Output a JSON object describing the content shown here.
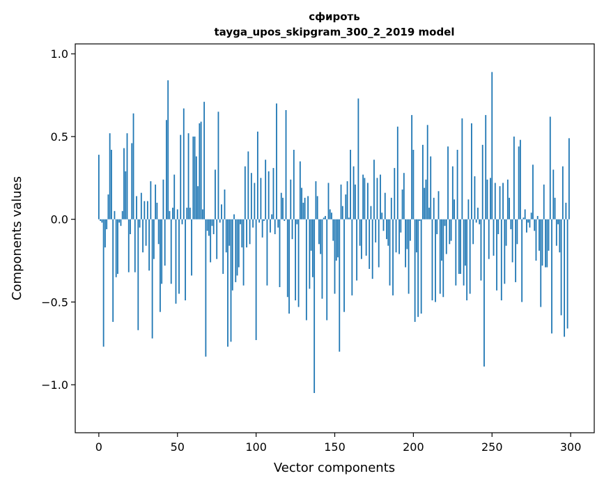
{
  "chart_data": {
    "type": "bar",
    "title_line1": "сфироть",
    "title_line2": "tayga_upos_skipgram_300_2_2019 model",
    "xlabel": "Vector components",
    "ylabel": "Components values",
    "xlim": [
      -15,
      315
    ],
    "ylim": [
      -1.29,
      1.06
    ],
    "x_ticks": [
      0,
      50,
      100,
      150,
      200,
      250,
      300
    ],
    "x_tick_labels": [
      "0",
      "50",
      "100",
      "150",
      "200",
      "250",
      "300"
    ],
    "y_ticks": [
      -1.0,
      -0.5,
      0.0,
      0.5,
      1.0
    ],
    "y_tick_labels": [
      "−1.0",
      "−0.5",
      "0.0",
      "0.5",
      "1.0"
    ],
    "bar_color": "#1f77b4",
    "grid": false,
    "values": [
      0.39,
      -0.01,
      -0.02,
      -0.77,
      -0.17,
      -0.06,
      0.15,
      0.52,
      0.42,
      -0.62,
      0.05,
      -0.35,
      -0.33,
      -0.02,
      -0.04,
      0.05,
      0.43,
      0.29,
      0.52,
      -0.32,
      -0.09,
      0.46,
      0.64,
      -0.32,
      0.14,
      -0.67,
      -0.05,
      0.16,
      -0.2,
      0.11,
      -0.16,
      0.11,
      -0.31,
      0.23,
      -0.72,
      -0.24,
      0.21,
      0.1,
      -0.15,
      -0.56,
      -0.39,
      0.24,
      -0.28,
      0.6,
      0.84,
      0.05,
      -0.39,
      0.07,
      0.27,
      -0.51,
      0.06,
      -0.45,
      0.51,
      -0.03,
      0.67,
      -0.49,
      0.07,
      0.52,
      0.07,
      -0.34,
      0.5,
      0.5,
      0.38,
      0.2,
      0.58,
      0.59,
      0.06,
      0.71,
      -0.83,
      -0.07,
      -0.1,
      -0.26,
      -0.04,
      -0.09,
      0.3,
      -0.24,
      0.65,
      -0.02,
      0.09,
      -0.33,
      0.18,
      -0.2,
      -0.77,
      -0.16,
      -0.74,
      -0.43,
      0.03,
      -0.38,
      -0.34,
      -0.29,
      -0.03,
      -0.17,
      -0.4,
      0.32,
      -0.17,
      0.41,
      -0.15,
      0.28,
      -0.05,
      0.22,
      -0.73,
      0.53,
      -0.02,
      0.25,
      -0.11,
      -0.01,
      0.36,
      -0.4,
      0.29,
      -0.08,
      0.03,
      0.31,
      -0.09,
      0.7,
      -0.05,
      -0.41,
      0.16,
      0.13,
      -0.01,
      0.66,
      -0.47,
      -0.57,
      0.24,
      -0.12,
      0.42,
      -0.49,
      -0.03,
      -0.53,
      0.35,
      0.19,
      0.1,
      0.13,
      -0.61,
      0.14,
      -0.42,
      -0.19,
      -0.35,
      -1.05,
      0.23,
      0.14,
      -0.15,
      -0.21,
      -0.48,
      0.01,
      0.02,
      -0.61,
      0.22,
      0.06,
      0.04,
      -0.13,
      -0.45,
      -0.25,
      -0.23,
      -0.8,
      0.21,
      0.08,
      -0.56,
      0.15,
      0.23,
      0.01,
      0.42,
      -0.46,
      0.32,
      0.21,
      -0.37,
      0.73,
      -0.16,
      -0.24,
      0.27,
      0.25,
      -0.22,
      0.22,
      -0.3,
      0.08,
      -0.36,
      0.36,
      -0.14,
      0.25,
      -0.29,
      0.27,
      0.04,
      -0.07,
      0.16,
      -0.12,
      -0.16,
      -0.4,
      0.13,
      -0.46,
      0.31,
      -0.2,
      0.56,
      -0.21,
      -0.08,
      0.18,
      0.28,
      -0.29,
      -0.18,
      -0.45,
      -0.13,
      0.63,
      0.42,
      -0.62,
      -0.2,
      -0.59,
      -0.01,
      -0.57,
      0.45,
      0.19,
      0.24,
      0.57,
      0.07,
      0.38,
      -0.49,
      0.13,
      -0.5,
      -0.09,
      0.17,
      -0.45,
      -0.25,
      -0.47,
      -0.04,
      -0.21,
      0.44,
      -0.15,
      -0.13,
      0.32,
      0.12,
      -0.4,
      0.42,
      -0.33,
      -0.33,
      0.61,
      -0.4,
      -0.28,
      -0.49,
      0.12,
      -0.45,
      0.58,
      -0.15,
      0.26,
      -0.02,
      0.07,
      -0.03,
      -0.37,
      0.45,
      -0.89,
      0.63,
      0.24,
      -0.24,
      0.25,
      0.89,
      -0.22,
      0.22,
      -0.43,
      -0.09,
      0.2,
      -0.49,
      0.22,
      -0.39,
      -0.16,
      0.24,
      0.13,
      -0.06,
      -0.26,
      0.5,
      -0.38,
      -0.15,
      0.44,
      0.48,
      -0.5,
      0.01,
      0.06,
      -0.08,
      -0.02,
      -0.05,
      0.04,
      0.33,
      -0.07,
      -0.25,
      0.02,
      -0.19,
      -0.53,
      -0.28,
      0.21,
      -0.29,
      -0.29,
      -0.19,
      0.62,
      -0.69,
      0.3,
      0.13,
      -0.16,
      -0.03,
      -0.2,
      -0.58,
      0.32,
      -0.71,
      0.1,
      -0.66,
      0.49
    ]
  }
}
